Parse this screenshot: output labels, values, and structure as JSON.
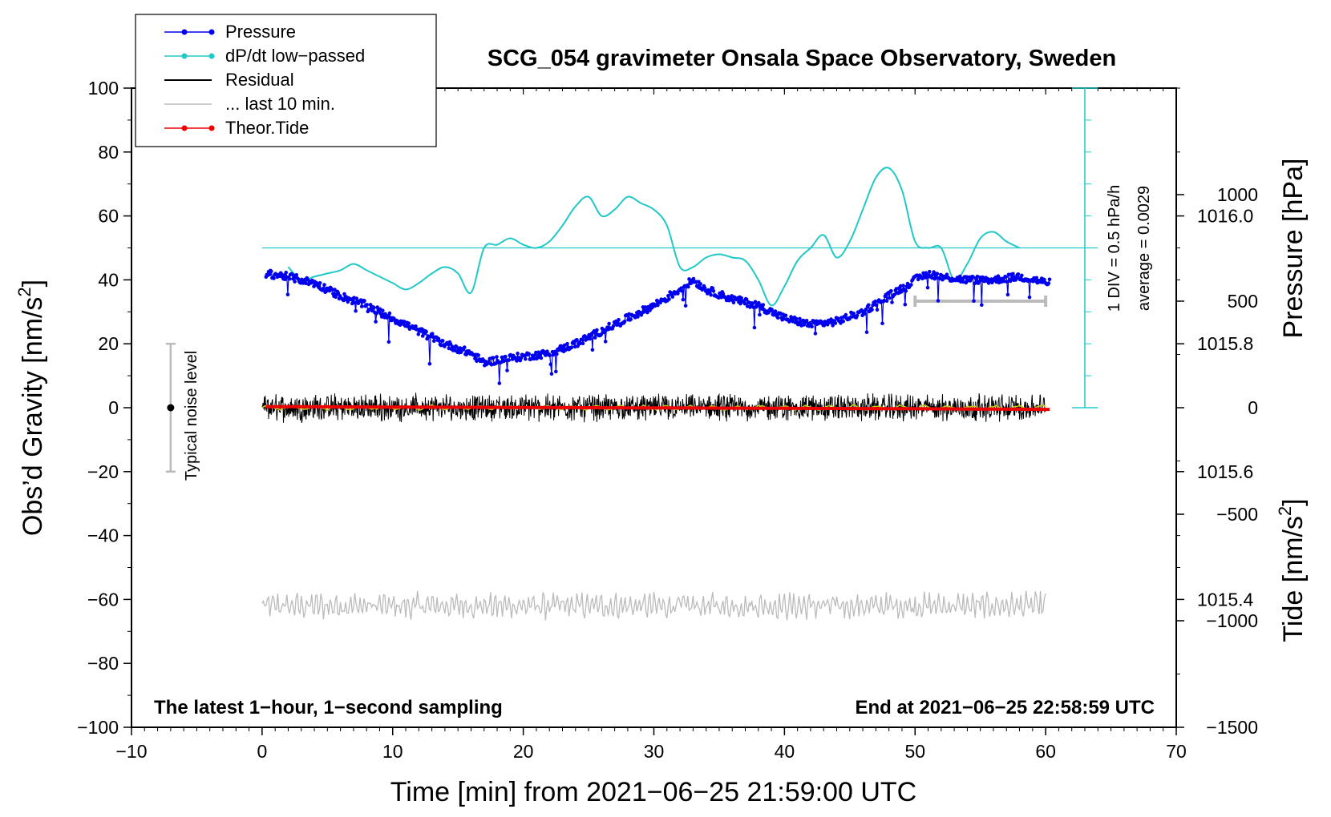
{
  "chart_data": {
    "type": "line",
    "title": "SCG_054 gravimeter Onsala Space Observatory, Sweden",
    "xlabel": "Time [min] from 2021−06−25 21:59:00 UTC",
    "ylabel_left_text": "Obs’d Gravity [nm/s",
    "ylabel_left_sup": "2",
    "ylabel_left_close": "]",
    "ylabel_right_pressure": "Pressure [hPa]",
    "ylabel_right_tide_text": "Tide [nm/s",
    "ylabel_right_tide_sup": "2",
    "ylabel_right_tide_close": "]",
    "note_left": "The latest 1−hour, 1−second sampling",
    "note_right": "End at 2021−06−25 22:58:59 UTC",
    "noise_label": "Typical noise level",
    "noise_range": [
      -20,
      20
    ],
    "noise_x": -7,
    "dpdt_scale_label": "1 DIV = 0.5 hPa/h",
    "dpdt_average_label": "average = 0.0029",
    "xlim": [
      -10,
      70
    ],
    "ylim_left": [
      -100,
      100
    ],
    "ylim_pressure": [
      1015.2,
      1016.2
    ],
    "ylim_tide": [
      -1500,
      1500
    ],
    "x_ticks": [
      "−10",
      "0",
      "10",
      "20",
      "30",
      "40",
      "50",
      "60",
      "70"
    ],
    "x_tick_values": [
      -10,
      0,
      10,
      20,
      30,
      40,
      50,
      60,
      70
    ],
    "y_left_ticks": [
      "100",
      "80",
      "60",
      "40",
      "20",
      "0",
      "−20",
      "−40",
      "−60",
      "−80",
      "−100"
    ],
    "y_left_tick_values": [
      100,
      80,
      60,
      40,
      20,
      0,
      -20,
      -40,
      -60,
      -80,
      -100
    ],
    "pressure_ticks": [
      "1016.0",
      "1015.8",
      "1015.6",
      "1015.4"
    ],
    "pressure_tick_values": [
      1016.0,
      1015.8,
      1015.6,
      1015.4
    ],
    "tide_ticks": [
      "1000",
      "500",
      "0",
      "−500",
      "−1000",
      "−1500"
    ],
    "tide_tick_values": [
      1000,
      500,
      0,
      -500,
      -1000,
      -1500
    ],
    "legend": [
      {
        "label": "Pressure",
        "color": "#0000ee",
        "marker": true
      },
      {
        "label": "dP/dt low−passed",
        "color": "#22c8c8",
        "marker": true
      },
      {
        "label": "Residual",
        "color": "#000000",
        "marker": false
      },
      {
        "label": "... last 10 min.",
        "color": "#bbbbbb",
        "marker": false
      },
      {
        "label": "Theor.Tide",
        "color": "#ee0000",
        "marker": true
      }
    ],
    "last10_range": [
      50,
      60
    ],
    "last10_tide_level": 500,
    "dpdt_zero_level": 50,
    "dpdt_axis_x": 63,
    "dpdt_axis_range": [
      0,
      100
    ],
    "series": [
      {
        "name": "Pressure",
        "color": "#0000ee",
        "axis": "pressure",
        "x": [
          0.3,
          2,
          4,
          6,
          8,
          10,
          12,
          14,
          16,
          17,
          18,
          20,
          22,
          24,
          26,
          28,
          30,
          32,
          33,
          34,
          36,
          38,
          40,
          42,
          44,
          46,
          48,
          50,
          51,
          52,
          54,
          56,
          58,
          60.3
        ],
        "y": [
          1015.91,
          1015.905,
          1015.895,
          1015.875,
          1015.86,
          1015.84,
          1015.82,
          1015.8,
          1015.785,
          1015.77,
          1015.775,
          1015.78,
          1015.785,
          1015.8,
          1015.82,
          1015.84,
          1015.86,
          1015.885,
          1015.9,
          1015.885,
          1015.87,
          1015.86,
          1015.84,
          1015.83,
          1015.835,
          1015.85,
          1015.875,
          1015.9,
          1015.91,
          1015.905,
          1015.9,
          1015.9,
          1015.905,
          1015.895
        ]
      },
      {
        "name": "dP/dt low−passed",
        "color": "#22c8c8",
        "axis": "left",
        "x": [
          2,
          3,
          4,
          5,
          6,
          7,
          8,
          9,
          10,
          11,
          12,
          13,
          14,
          15,
          16,
          17,
          18,
          19,
          20,
          21,
          22,
          23,
          24,
          25,
          26,
          27,
          28,
          29,
          30,
          31,
          32,
          33,
          34,
          35,
          36,
          37,
          38,
          39,
          40,
          41,
          42,
          43,
          44,
          45,
          46,
          47,
          48,
          49,
          50,
          51,
          52,
          53,
          54,
          55,
          56,
          57,
          58
        ],
        "y": [
          44,
          40,
          41,
          42,
          43,
          45,
          43,
          41,
          39,
          37,
          39,
          42,
          44,
          42,
          36,
          50,
          51,
          53,
          51,
          50,
          52,
          57,
          63,
          66,
          60,
          62,
          66,
          64,
          62,
          57,
          44,
          44,
          47,
          48,
          47,
          46,
          40,
          32,
          38,
          46,
          50,
          54,
          47,
          52,
          62,
          72,
          75,
          68,
          52,
          50,
          50,
          40,
          45,
          53,
          55,
          52,
          50
        ]
      },
      {
        "name": "Residual",
        "color": "#000000",
        "axis": "left",
        "x": [
          0,
          60
        ],
        "y": [
          0,
          0
        ],
        "amplitude": 4
      },
      {
        "name": "Residual smoothed",
        "color": "#c8c820",
        "axis": "left",
        "x": [
          0,
          60
        ],
        "y": [
          0,
          0
        ]
      },
      {
        "name": "... last 10 min.",
        "color": "#bbbbbb",
        "axis": "left",
        "x": [
          0,
          60
        ],
        "y": [
          -62,
          -62
        ],
        "amplitude": 4
      },
      {
        "name": "Theor.Tide",
        "color": "#ee0000",
        "axis": "tide",
        "x": [
          0.3,
          10,
          20,
          30,
          40,
          50,
          60.3
        ],
        "y": [
          5,
          3,
          1,
          -1,
          -3,
          -5,
          -8
        ]
      }
    ]
  }
}
